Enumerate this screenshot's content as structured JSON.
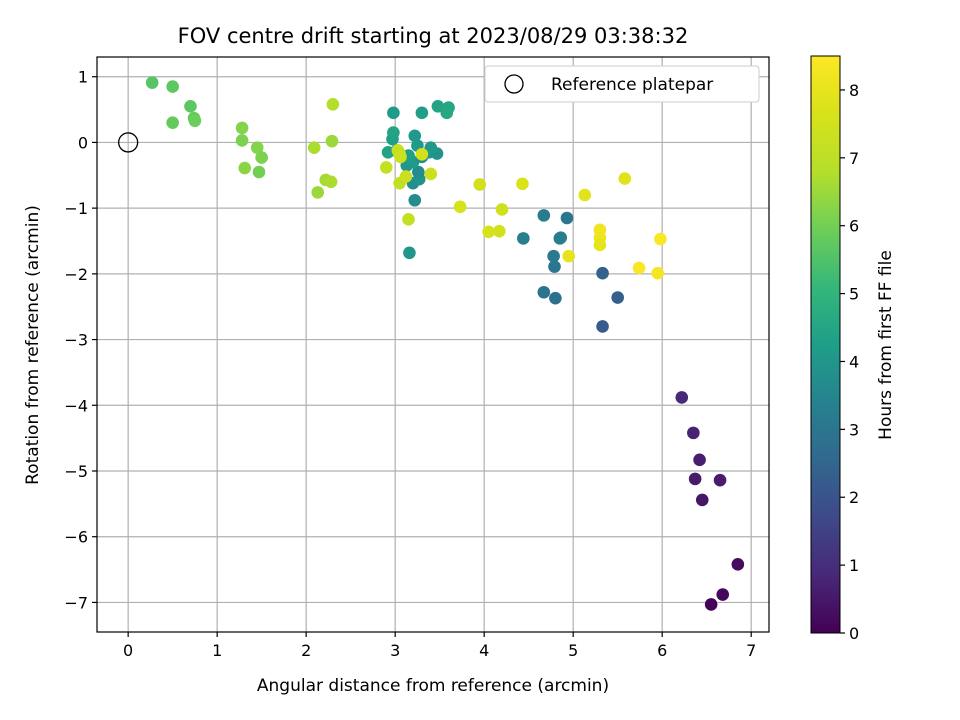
{
  "chart_data": {
    "type": "scatter",
    "title": "FOV centre drift starting at 2023/08/29 03:38:32",
    "xlabel": "Angular distance from reference (arcmin)",
    "ylabel": "Rotation from reference (arcmin)",
    "xlim": [
      -0.35,
      7.2
    ],
    "ylim": [
      -7.45,
      1.3
    ],
    "xticks": [
      0,
      1,
      2,
      3,
      4,
      5,
      6,
      7
    ],
    "yticks": [
      1,
      0,
      -1,
      -2,
      -3,
      -4,
      -5,
      -6,
      -7
    ],
    "xtick_labels": [
      "0",
      "1",
      "2",
      "3",
      "4",
      "5",
      "6",
      "7"
    ],
    "ytick_labels": [
      "1",
      "0",
      "−1",
      "−2",
      "−3",
      "−4",
      "−5",
      "−6",
      "−7"
    ],
    "grid": true,
    "colormap": "viridis",
    "colorbar": {
      "label": "Hours from first FF file",
      "range": [
        0,
        8.5
      ],
      "ticks": [
        0,
        1,
        2,
        3,
        4,
        5,
        6,
        7,
        8
      ],
      "tick_labels": [
        "0",
        "1",
        "2",
        "3",
        "4",
        "5",
        "6",
        "7",
        "8"
      ]
    },
    "reference": {
      "x": 0,
      "y": 0,
      "label": "Reference platepar"
    },
    "legend_position": "top-right",
    "points": [
      {
        "x": 6.55,
        "y": -7.03,
        "c": 0.05
      },
      {
        "x": 6.68,
        "y": -6.88,
        "c": 0.15
      },
      {
        "x": 6.85,
        "y": -6.42,
        "c": 0.25
      },
      {
        "x": 6.45,
        "y": -5.44,
        "c": 0.45
      },
      {
        "x": 6.37,
        "y": -5.12,
        "c": 0.55
      },
      {
        "x": 6.65,
        "y": -5.14,
        "c": 0.6
      },
      {
        "x": 6.42,
        "y": -4.83,
        "c": 0.65
      },
      {
        "x": 6.35,
        "y": -4.42,
        "c": 0.75
      },
      {
        "x": 6.22,
        "y": -3.88,
        "c": 0.85
      },
      {
        "x": 5.33,
        "y": -2.8,
        "c": 2.2
      },
      {
        "x": 5.5,
        "y": -2.36,
        "c": 2.3
      },
      {
        "x": 5.33,
        "y": -1.99,
        "c": 2.4
      },
      {
        "x": 4.8,
        "y": -2.37,
        "c": 2.8
      },
      {
        "x": 4.67,
        "y": -2.28,
        "c": 2.9
      },
      {
        "x": 4.79,
        "y": -1.89,
        "c": 3.0
      },
      {
        "x": 4.78,
        "y": -1.73,
        "c": 3.1
      },
      {
        "x": 4.85,
        "y": -1.46,
        "c": 3.2
      },
      {
        "x": 4.86,
        "y": -1.45,
        "c": 3.25
      },
      {
        "x": 4.44,
        "y": -1.46,
        "c": 3.3
      },
      {
        "x": 4.67,
        "y": -1.11,
        "c": 3.2
      },
      {
        "x": 4.93,
        "y": -1.15,
        "c": 3.0
      },
      {
        "x": 3.16,
        "y": -1.68,
        "c": 4.0
      },
      {
        "x": 3.22,
        "y": -0.88,
        "c": 3.7
      },
      {
        "x": 3.2,
        "y": -0.62,
        "c": 3.8
      },
      {
        "x": 3.27,
        "y": -0.56,
        "c": 3.9
      },
      {
        "x": 3.26,
        "y": -0.45,
        "c": 3.7
      },
      {
        "x": 3.13,
        "y": -0.35,
        "c": 4.0
      },
      {
        "x": 3.2,
        "y": -0.3,
        "c": 4.1
      },
      {
        "x": 3.3,
        "y": -0.22,
        "c": 3.8
      },
      {
        "x": 3.15,
        "y": -0.2,
        "c": 4.3
      },
      {
        "x": 3.05,
        "y": -0.18,
        "c": 4.2
      },
      {
        "x": 2.92,
        "y": -0.15,
        "c": 4.4
      },
      {
        "x": 3.02,
        "y": -0.12,
        "c": 4.5
      },
      {
        "x": 3.25,
        "y": -0.05,
        "c": 4.2
      },
      {
        "x": 3.38,
        "y": -0.15,
        "c": 4.0
      },
      {
        "x": 3.47,
        "y": -0.17,
        "c": 3.9
      },
      {
        "x": 3.4,
        "y": -0.08,
        "c": 4.1
      },
      {
        "x": 3.22,
        "y": 0.1,
        "c": 4.1
      },
      {
        "x": 2.97,
        "y": 0.05,
        "c": 4.3
      },
      {
        "x": 2.98,
        "y": 0.15,
        "c": 4.4
      },
      {
        "x": 3.3,
        "y": 0.45,
        "c": 4.3
      },
      {
        "x": 2.98,
        "y": 0.45,
        "c": 4.2
      },
      {
        "x": 3.48,
        "y": 0.55,
        "c": 4.4
      },
      {
        "x": 3.6,
        "y": 0.53,
        "c": 4.5
      },
      {
        "x": 3.58,
        "y": 0.45,
        "c": 4.6
      },
      {
        "x": 2.3,
        "y": 0.58,
        "c": 6.8
      },
      {
        "x": 2.29,
        "y": 0.02,
        "c": 6.5
      },
      {
        "x": 2.09,
        "y": -0.08,
        "c": 6.7
      },
      {
        "x": 2.22,
        "y": -0.57,
        "c": 6.6
      },
      {
        "x": 2.28,
        "y": -0.6,
        "c": 6.7
      },
      {
        "x": 2.13,
        "y": -0.76,
        "c": 6.5
      },
      {
        "x": 2.9,
        "y": -0.38,
        "c": 7.2
      },
      {
        "x": 3.05,
        "y": -0.62,
        "c": 7.1
      },
      {
        "x": 3.12,
        "y": -0.52,
        "c": 7.3
      },
      {
        "x": 3.15,
        "y": -1.17,
        "c": 7.2
      },
      {
        "x": 3.03,
        "y": -0.12,
        "c": 7.3
      },
      {
        "x": 3.05,
        "y": -0.17,
        "c": 7.2
      },
      {
        "x": 3.06,
        "y": -0.22,
        "c": 7.4
      },
      {
        "x": 3.3,
        "y": -0.18,
        "c": 7.5
      },
      {
        "x": 3.4,
        "y": -0.48,
        "c": 7.3
      },
      {
        "x": 3.73,
        "y": -0.98,
        "c": 7.6
      },
      {
        "x": 3.95,
        "y": -0.64,
        "c": 7.5
      },
      {
        "x": 4.05,
        "y": -1.36,
        "c": 7.6
      },
      {
        "x": 4.17,
        "y": -1.35,
        "c": 7.5
      },
      {
        "x": 4.2,
        "y": -1.02,
        "c": 7.4
      },
      {
        "x": 4.43,
        "y": -0.63,
        "c": 7.7
      },
      {
        "x": 4.95,
        "y": -1.73,
        "c": 8.0
      },
      {
        "x": 5.13,
        "y": -0.8,
        "c": 7.9
      },
      {
        "x": 5.3,
        "y": -1.33,
        "c": 8.2
      },
      {
        "x": 5.3,
        "y": -1.45,
        "c": 8.1
      },
      {
        "x": 5.3,
        "y": -1.56,
        "c": 8.0
      },
      {
        "x": 5.58,
        "y": -0.55,
        "c": 7.8
      },
      {
        "x": 5.74,
        "y": -1.91,
        "c": 8.4
      },
      {
        "x": 5.95,
        "y": -1.99,
        "c": 8.3
      },
      {
        "x": 5.98,
        "y": -1.47,
        "c": 8.4
      },
      {
        "x": 0.27,
        "y": 0.91,
        "c": 5.6
      },
      {
        "x": 0.5,
        "y": 0.85,
        "c": 5.7
      },
      {
        "x": 0.5,
        "y": 0.3,
        "c": 5.8
      },
      {
        "x": 0.7,
        "y": 0.55,
        "c": 5.7
      },
      {
        "x": 0.74,
        "y": 0.37,
        "c": 5.8
      },
      {
        "x": 0.75,
        "y": 0.33,
        "c": 5.9
      },
      {
        "x": 1.28,
        "y": 0.22,
        "c": 6.2
      },
      {
        "x": 1.28,
        "y": 0.03,
        "c": 6.1
      },
      {
        "x": 1.31,
        "y": -0.39,
        "c": 6.3
      },
      {
        "x": 1.45,
        "y": -0.08,
        "c": 6.2
      },
      {
        "x": 1.5,
        "y": -0.23,
        "c": 6.1
      },
      {
        "x": 1.47,
        "y": -0.45,
        "c": 6.0
      }
    ]
  }
}
